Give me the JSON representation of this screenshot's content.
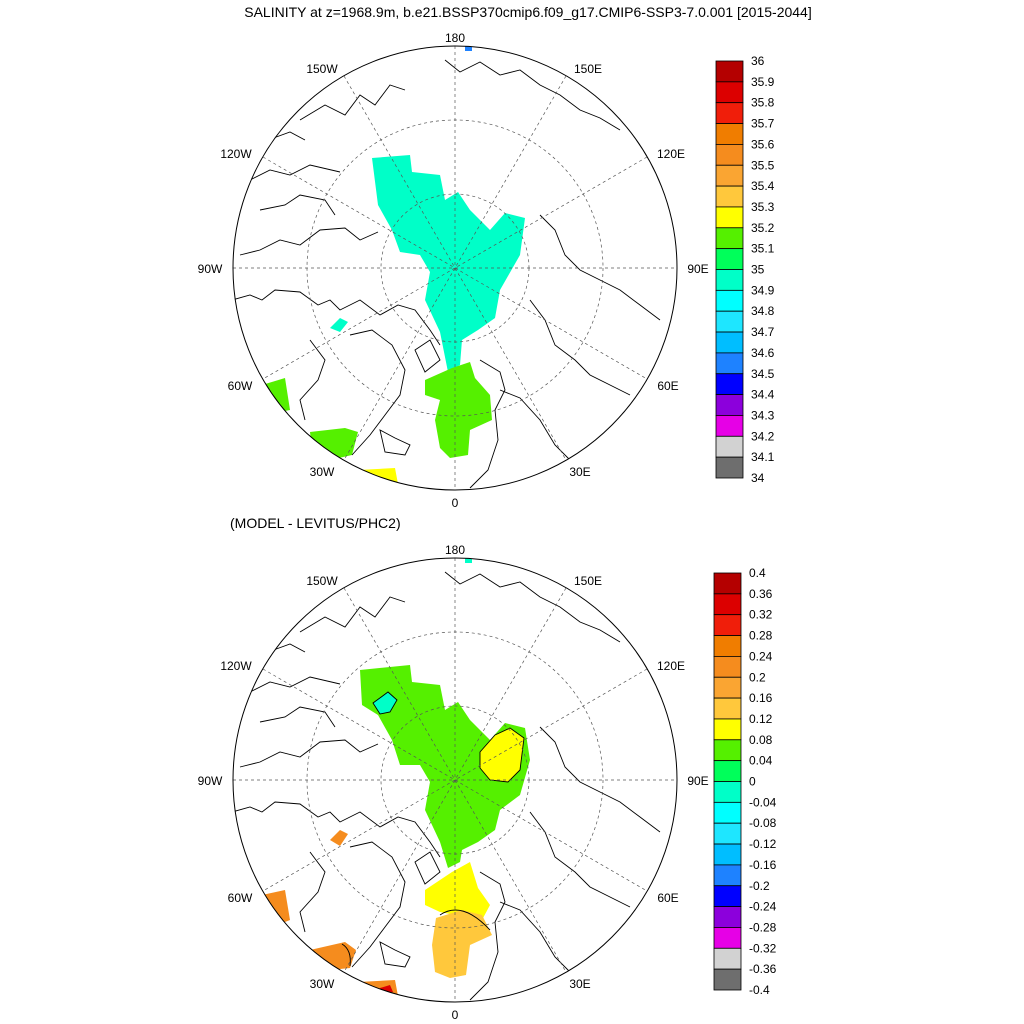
{
  "title": "SALINITY at z=1968.9m, b.e21.BSSP370cmip6.f09_g17.CMIP6-SSP3-7.0.001 [2015-2044]",
  "diff_title": "(MODEL - LEVITUS/PHC2)",
  "longitude_labels": {
    "top": "180",
    "upper_left": "150W",
    "upper_right": "150E",
    "left_upper": "120W",
    "right_upper": "120E",
    "left": "90W",
    "right": "90E",
    "left_lower": "60W",
    "right_lower": "60E",
    "lower_left": "30W",
    "lower_right": "30E",
    "bottom": "0"
  },
  "colorbar_top": {
    "labels": [
      "36",
      "35.9",
      "35.8",
      "35.7",
      "35.6",
      "35.5",
      "35.4",
      "35.3",
      "35.2",
      "35.1",
      "35",
      "34.9",
      "34.8",
      "34.7",
      "34.6",
      "34.5",
      "34.4",
      "34.3",
      "34.2",
      "34.1",
      "34"
    ],
    "colors": [
      "#b40000",
      "#dc0000",
      "#f01e0a",
      "#f07d00",
      "#f58c1e",
      "#faa532",
      "#ffc83c",
      "#ffff00",
      "#55f000",
      "#00ff5a",
      "#00ffc8",
      "#00ffff",
      "#1ee6ff",
      "#00beff",
      "#1e82ff",
      "#0000ff",
      "#8c00dc",
      "#e600e6",
      "#d2d2d2",
      "#6e6e6e"
    ]
  },
  "colorbar_bottom": {
    "labels": [
      "0.4",
      "0.36",
      "0.32",
      "0.28",
      "0.24",
      "0.2",
      "0.16",
      "0.12",
      "0.08",
      "0.04",
      "0",
      "-0.04",
      "-0.08",
      "-0.12",
      "-0.16",
      "-0.2",
      "-0.24",
      "-0.28",
      "-0.32",
      "-0.36",
      "-0.4"
    ],
    "colors": [
      "#b40000",
      "#dc0000",
      "#f01e0a",
      "#f07d00",
      "#f58c1e",
      "#faa532",
      "#ffc83c",
      "#ffff00",
      "#55f000",
      "#00ff5a",
      "#00ffc8",
      "#00ffff",
      "#1ee6ff",
      "#00beff",
      "#1e82ff",
      "#0000ff",
      "#8c00dc",
      "#e600e6",
      "#d2d2d2",
      "#6e6e6e"
    ]
  },
  "field_colors": {
    "top_arctic": "#00ffc8",
    "top_atlantic": "#55f000",
    "top_south": "#ffff00",
    "top_spot": "#1e82ff",
    "bottom_arctic": "#55f000",
    "bottom_eurasian_high": "#ffff00",
    "bottom_fram": "#ffff00",
    "bottom_norwegian": "#ffc83c",
    "bottom_orange": "#f58c1e",
    "bottom_red": "#dc0000",
    "bottom_negative": "#00ffc8"
  }
}
